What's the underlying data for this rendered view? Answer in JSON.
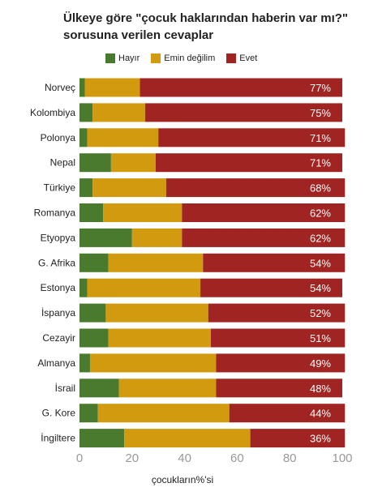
{
  "title": "Ülkeye göre \"çocuk haklarından haberin var mı?\" sorusuna verilen cevaplar",
  "colors": {
    "hayir": "#4a7a2e",
    "emin": "#d19a0f",
    "evet": "#a02422"
  },
  "chart_data": {
    "type": "bar",
    "orientation": "horizontal",
    "stacked": true,
    "title": "Ülkeye göre \"çocuk haklarından haberin var mı?\" sorusuna verilen cevaplar",
    "xlabel": "çocukların%'si",
    "ylabel": "",
    "xlim": [
      0,
      100
    ],
    "xticks": [
      "0",
      "20",
      "40",
      "60",
      "80",
      "100"
    ],
    "legend_position": "top",
    "categories": [
      "Norveç",
      "Kolombiya",
      "Polonya",
      "Nepal",
      "Türkiye",
      "Romanya",
      "Etyopya",
      "G. Afrika",
      "Estonya",
      "İspanya",
      "Cezayir",
      "Almanya",
      "İsrail",
      "G. Kore",
      "İngiltere"
    ],
    "series": [
      {
        "name": "Hayır",
        "values": [
          2,
          5,
          3,
          12,
          5,
          9,
          20,
          11,
          3,
          10,
          11,
          4,
          15,
          7,
          17
        ]
      },
      {
        "name": "Emin değilim",
        "values": [
          21,
          20,
          27,
          17,
          28,
          30,
          19,
          36,
          43,
          39,
          39,
          48,
          37,
          50,
          48
        ]
      },
      {
        "name": "Evet",
        "values": [
          77,
          75,
          71,
          71,
          68,
          62,
          62,
          54,
          54,
          52,
          51,
          49,
          48,
          44,
          36
        ]
      }
    ],
    "value_labels": [
      "77%",
      "75%",
      "71%",
      "71%",
      "68%",
      "62%",
      "62%",
      "54%",
      "54%",
      "52%",
      "51%",
      "49%",
      "48%",
      "44%",
      "36%"
    ]
  }
}
